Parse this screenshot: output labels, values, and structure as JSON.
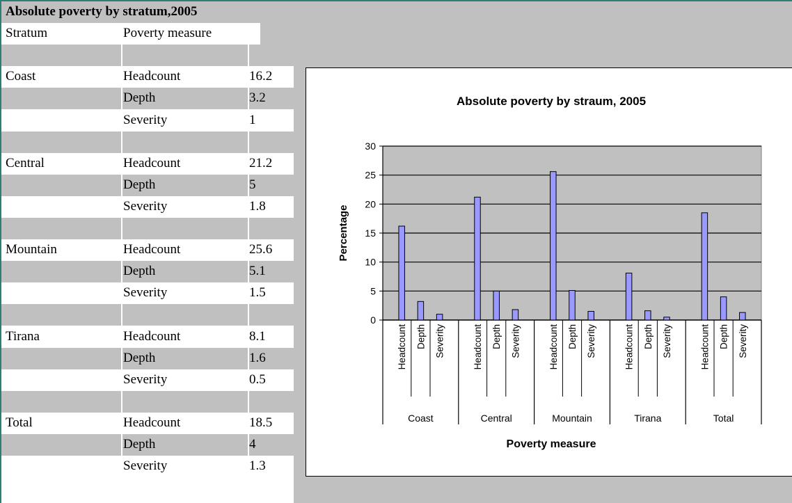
{
  "table": {
    "title": "Absolute poverty by stratum,2005",
    "header": {
      "stratum": "Stratum",
      "measure": "Poverty measure"
    },
    "groups": [
      {
        "stratum": "Coast",
        "rows": [
          {
            "measure": "Headcount",
            "value": "16.2"
          },
          {
            "measure": "Depth",
            "value": "3.2"
          },
          {
            "measure": "Severity",
            "value": "1"
          }
        ]
      },
      {
        "stratum": "Central",
        "rows": [
          {
            "measure": "Headcount",
            "value": "21.2"
          },
          {
            "measure": "Depth",
            "value": "5"
          },
          {
            "measure": "Severity",
            "value": "1.8"
          }
        ]
      },
      {
        "stratum": "Mountain",
        "rows": [
          {
            "measure": "Headcount",
            "value": "25.6"
          },
          {
            "measure": "Depth",
            "value": "5.1"
          },
          {
            "measure": "Severity",
            "value": "1.5"
          }
        ]
      },
      {
        "stratum": "Tirana",
        "rows": [
          {
            "measure": "Headcount",
            "value": "8.1"
          },
          {
            "measure": "Depth",
            "value": "1.6"
          },
          {
            "measure": "Severity",
            "value": "0.5"
          }
        ]
      },
      {
        "stratum": "Total",
        "rows": [
          {
            "measure": "Headcount",
            "value": "18.5"
          },
          {
            "measure": "Depth",
            "value": "4"
          },
          {
            "measure": "Severity",
            "value": "1.3"
          }
        ]
      }
    ]
  },
  "chart_data": {
    "type": "bar",
    "title": "Absolute poverty by straum, 2005",
    "xlabel": "Poverty measure",
    "ylabel": "Percentage",
    "ylim": [
      0,
      30
    ],
    "yticks": [
      0,
      5,
      10,
      15,
      20,
      25,
      30
    ],
    "grid": true,
    "legend": "none",
    "groups": [
      "Coast",
      "Central",
      "Mountain",
      "Tirana",
      "Total"
    ],
    "categories": [
      "Headcount",
      "Depth",
      "Severity"
    ],
    "values": [
      [
        16.2,
        3.2,
        1
      ],
      [
        21.2,
        5,
        1.8
      ],
      [
        25.6,
        5.1,
        1.5
      ],
      [
        8.1,
        1.6,
        0.5
      ],
      [
        18.5,
        4,
        1.3
      ]
    ],
    "colors": {
      "bar": "#9999ff",
      "plot_bg": "#c0c0c0"
    }
  }
}
